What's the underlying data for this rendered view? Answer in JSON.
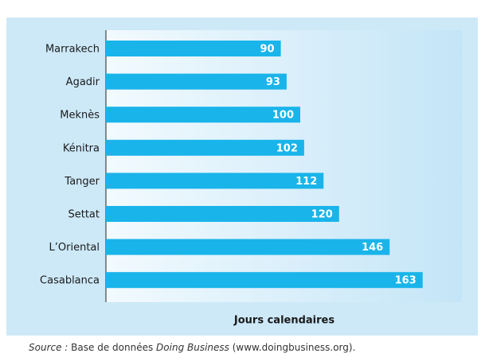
{
  "chart_data": {
    "type": "bar",
    "orientation": "horizontal",
    "categories": [
      "Marrakech",
      "Agadir",
      "Meknès",
      "Kénitra",
      "Tanger",
      "Settat",
      "L’Oriental",
      "Casablanca"
    ],
    "values": [
      90,
      93,
      100,
      102,
      112,
      120,
      146,
      163
    ],
    "color": "#19b4ea",
    "xlabel": "Jours calendaires",
    "source": [
      {
        "text": "Source :",
        "italic": true
      },
      {
        "text": "Base de données",
        "italic": false
      },
      {
        "text": "Doing Business",
        "italic": true
      },
      {
        "text": "(www.doingbusiness.org).",
        "italic": false
      }
    ]
  }
}
